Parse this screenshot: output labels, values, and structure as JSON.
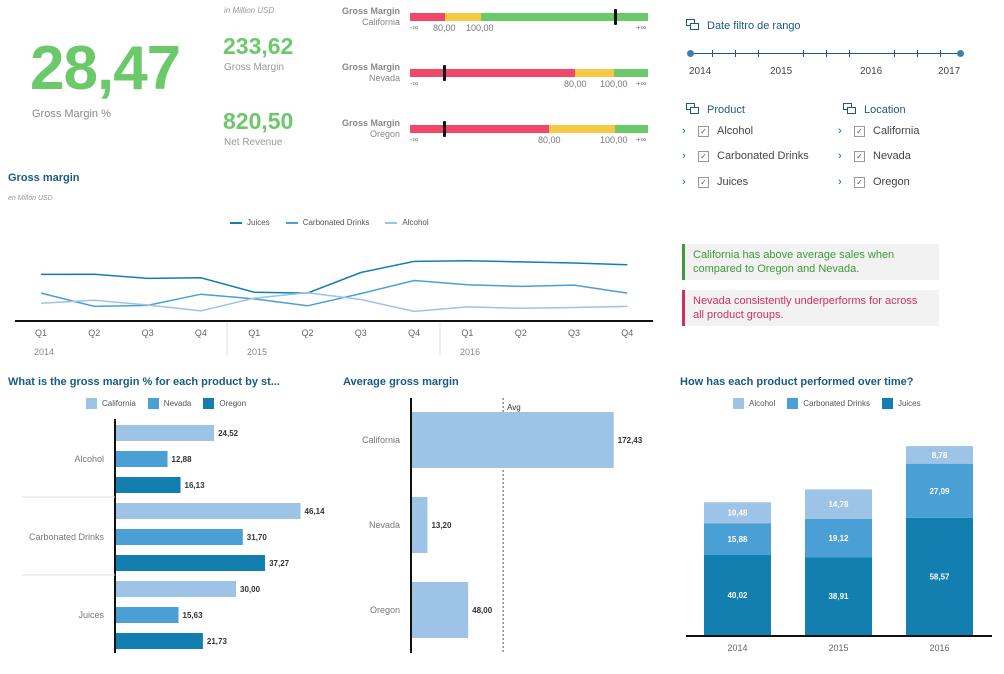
{
  "kpis": {
    "gross_margin_pct": {
      "value": "28,47",
      "label": "Gross Margin %"
    },
    "unit_note": "in Million USD",
    "gross_margin": {
      "value": "233,62",
      "label": "Gross Margin"
    },
    "net_revenue": {
      "value": "820,50",
      "label": "Net Revenue"
    }
  },
  "bullets": [
    {
      "title": "Gross Margin",
      "state": "California",
      "ticks": [
        "-∞",
        "80,00",
        "100,00",
        "+∞"
      ]
    },
    {
      "title": "Gross Margin",
      "state": "Nevada",
      "ticks": [
        "-∞",
        "80,00",
        "100,00",
        "+∞"
      ]
    },
    {
      "title": "Gross Margin",
      "state": "Oregon",
      "ticks": [
        "-∞",
        "80,00",
        "100,00",
        "+∞"
      ]
    }
  ],
  "filters": {
    "date_title": "Date filtro de rango",
    "years": [
      "2014",
      "2015",
      "2016",
      "2017"
    ],
    "product_title": "Product",
    "products": [
      "Alcohol",
      "Carbonated Drinks",
      "Juices"
    ],
    "location_title": "Location",
    "locations": [
      "California",
      "Nevada",
      "Oregon"
    ]
  },
  "notes": [
    {
      "text": "California has above average sales when compared to Oregon and Nevada.",
      "color": "#3e9a3a"
    },
    {
      "text": "Nevada consistently underperforms for across all product groups.",
      "color": "#d0315c"
    }
  ],
  "colors": {
    "light": "#9dc3e6",
    "mid": "#4a9fd5",
    "dark": "#137fb0",
    "green": "#6cc96a",
    "red": "#ef4868",
    "yellow": "#f6c843"
  },
  "chart_data": [
    {
      "type": "line",
      "title": "Gross margin",
      "subtitle": "en Millón USD",
      "quarters": [
        "Q1",
        "Q2",
        "Q3",
        "Q4",
        "Q1",
        "Q2",
        "Q3",
        "Q4",
        "Q1",
        "Q2",
        "Q3",
        "Q4"
      ],
      "years": [
        "2014",
        "2015",
        "2016"
      ],
      "series": [
        {
          "name": "Juices",
          "values": [
            18.5,
            18.6,
            16.0,
            16.4,
            7.4,
            6.8,
            19.7,
            26.6,
            27.0,
            26.3,
            25.6,
            24.5
          ]
        },
        {
          "name": "Carbonated Drinks",
          "values": [
            6.8,
            -1.5,
            -0.9,
            6.1,
            3.2,
            -1.1,
            6.5,
            14.7,
            12.0,
            11.0,
            11.8,
            6.8
          ]
        },
        {
          "name": "Alcohol",
          "values": [
            0.5,
            2.3,
            -0.6,
            -4.3,
            3.7,
            7.0,
            2.8,
            -4.6,
            -1.8,
            -2.7,
            -2.2,
            -1.5
          ]
        }
      ],
      "ylim": [
        -10,
        40
      ]
    },
    {
      "type": "bar",
      "title": "What is the gross margin % for each product by st...",
      "categories": [
        "Alcohol",
        "Carbonated Drinks",
        "Juices"
      ],
      "series": [
        {
          "name": "California",
          "values": [
            24.52,
            46.14,
            30.0
          ],
          "labels": [
            "24,52",
            "46,14",
            "30,00"
          ]
        },
        {
          "name": "Nevada",
          "values": [
            12.88,
            31.7,
            15.63
          ],
          "labels": [
            "12,88",
            "31,70",
            "15,63"
          ]
        },
        {
          "name": "Oregon",
          "values": [
            16.13,
            37.27,
            21.73
          ],
          "labels": [
            "16,13",
            "37,27",
            "21,73"
          ]
        }
      ],
      "xlim": [
        0,
        50
      ]
    },
    {
      "type": "bar",
      "title": "Average gross margin",
      "categories": [
        "California",
        "Nevada",
        "Oregon"
      ],
      "values": [
        172.43,
        13.2,
        48.0
      ],
      "labels": [
        "172,43",
        "13,20",
        "48,00"
      ],
      "reference_line": {
        "label": "Avg",
        "value": 77.88
      },
      "xlim": [
        0,
        230
      ]
    },
    {
      "type": "bar",
      "title": "How has each product performed over time?",
      "categories": [
        "2014",
        "2015",
        "2016"
      ],
      "series": [
        {
          "name": "Alcohol",
          "values": [
            10.48,
            14.78,
            8.78
          ],
          "labels": [
            "10,48",
            "14,78",
            "8,78"
          ]
        },
        {
          "name": "Carbonated Drinks",
          "values": [
            15.88,
            19.12,
            27.09
          ],
          "labels": [
            "15,88",
            "19,12",
            "27,09"
          ]
        },
        {
          "name": "Juices",
          "values": [
            40.02,
            38.91,
            58.57
          ],
          "labels": [
            "40,02",
            "38,91",
            "58,57"
          ]
        }
      ],
      "stacked": true,
      "ylim": [
        0,
        97
      ]
    }
  ]
}
